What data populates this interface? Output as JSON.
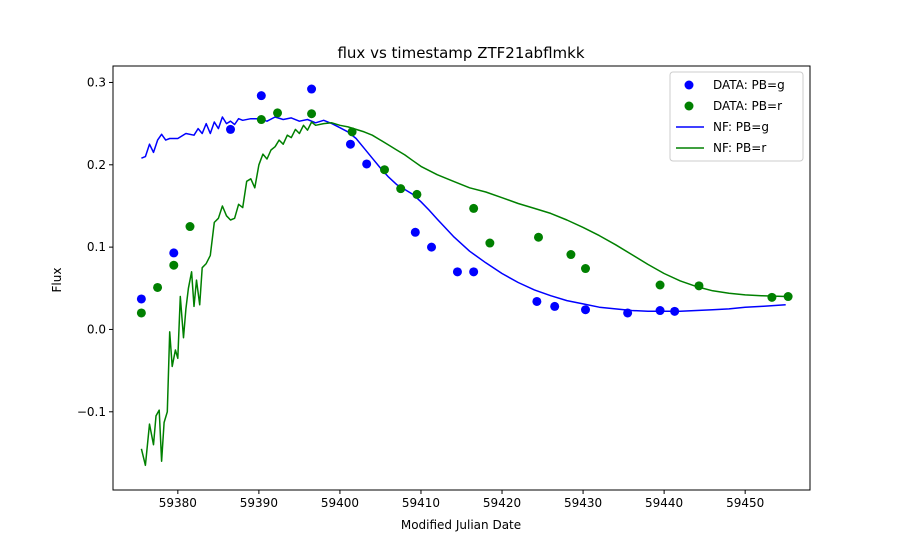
{
  "chart_data": {
    "type": "scatter",
    "title": "flux vs timestamp ZTF21abflmkk",
    "xlabel": "Modified Julian Date",
    "ylabel": "Flux",
    "xlim": [
      59372,
      59458
    ],
    "ylim": [
      -0.195,
      0.32
    ],
    "xticks": [
      59380,
      59390,
      59400,
      59410,
      59420,
      59430,
      59440,
      59450
    ],
    "yticks": [
      -0.1,
      0.0,
      0.1,
      0.2,
      0.3
    ],
    "ytick_labels": [
      "−0.1",
      "0.0",
      "0.1",
      "0.2",
      "0.3"
    ],
    "grid": false,
    "legend_position": "top-right",
    "scatter_series": [
      {
        "name": "DATA: PB=g",
        "color": "#0000ff",
        "points": [
          [
            59375.5,
            0.037
          ],
          [
            59379.5,
            0.093
          ],
          [
            59386.5,
            0.243
          ],
          [
            59390.3,
            0.284
          ],
          [
            59396.5,
            0.292
          ],
          [
            59401.3,
            0.225
          ],
          [
            59403.3,
            0.201
          ],
          [
            59409.3,
            0.118
          ],
          [
            59411.3,
            0.1
          ],
          [
            59414.5,
            0.07
          ],
          [
            59416.5,
            0.07
          ],
          [
            59424.3,
            0.034
          ],
          [
            59426.5,
            0.028
          ],
          [
            59430.3,
            0.024
          ],
          [
            59435.5,
            0.02
          ],
          [
            59439.5,
            0.023
          ],
          [
            59441.3,
            0.022
          ]
        ]
      },
      {
        "name": "DATA: PB=r",
        "color": "#008000",
        "points": [
          [
            59375.5,
            0.02
          ],
          [
            59377.5,
            0.051
          ],
          [
            59379.5,
            0.078
          ],
          [
            59381.5,
            0.125
          ],
          [
            59390.3,
            0.255
          ],
          [
            59392.3,
            0.263
          ],
          [
            59396.5,
            0.262
          ],
          [
            59401.5,
            0.24
          ],
          [
            59405.5,
            0.194
          ],
          [
            59407.5,
            0.171
          ],
          [
            59409.5,
            0.164
          ],
          [
            59416.5,
            0.147
          ],
          [
            59418.5,
            0.105
          ],
          [
            59424.5,
            0.112
          ],
          [
            59428.5,
            0.091
          ],
          [
            59430.3,
            0.074
          ],
          [
            59439.5,
            0.054
          ],
          [
            59444.3,
            0.053
          ],
          [
            59453.3,
            0.039
          ],
          [
            59455.3,
            0.04
          ]
        ]
      }
    ],
    "line_series": [
      {
        "name": "NF: PB=g",
        "color": "#0000ff",
        "points": [
          [
            59375.5,
            0.208
          ],
          [
            59376.0,
            0.21
          ],
          [
            59376.5,
            0.225
          ],
          [
            59377.0,
            0.215
          ],
          [
            59377.5,
            0.23
          ],
          [
            59378.0,
            0.237
          ],
          [
            59378.5,
            0.23
          ],
          [
            59379.0,
            0.232
          ],
          [
            59380.0,
            0.232
          ],
          [
            59381.0,
            0.238
          ],
          [
            59382.0,
            0.236
          ],
          [
            59382.5,
            0.244
          ],
          [
            59383.0,
            0.238
          ],
          [
            59383.5,
            0.25
          ],
          [
            59384.0,
            0.238
          ],
          [
            59384.5,
            0.252
          ],
          [
            59385.0,
            0.244
          ],
          [
            59385.5,
            0.258
          ],
          [
            59386.0,
            0.25
          ],
          [
            59386.5,
            0.253
          ],
          [
            59387.0,
            0.249
          ],
          [
            59387.5,
            0.256
          ],
          [
            59388.0,
            0.254
          ],
          [
            59389.0,
            0.256
          ],
          [
            59390.0,
            0.256
          ],
          [
            59391.0,
            0.253
          ],
          [
            59392.0,
            0.258
          ],
          [
            59393.0,
            0.255
          ],
          [
            59394.0,
            0.257
          ],
          [
            59395.0,
            0.253
          ],
          [
            59396.0,
            0.255
          ],
          [
            59397.0,
            0.251
          ],
          [
            59398.0,
            0.254
          ],
          [
            59399.0,
            0.25
          ],
          [
            59400.0,
            0.245
          ],
          [
            59401.0,
            0.24
          ],
          [
            59402.0,
            0.232
          ],
          [
            59403.0,
            0.22
          ],
          [
            59404.0,
            0.208
          ],
          [
            59405.0,
            0.196
          ],
          [
            59406.0,
            0.185
          ],
          [
            59407.0,
            0.176
          ],
          [
            59408.0,
            0.17
          ],
          [
            59409.0,
            0.164
          ],
          [
            59410.0,
            0.155
          ],
          [
            59411.0,
            0.145
          ],
          [
            59412.0,
            0.134
          ],
          [
            59414.0,
            0.113
          ],
          [
            59416.0,
            0.095
          ],
          [
            59418.0,
            0.081
          ],
          [
            59420.0,
            0.068
          ],
          [
            59422.0,
            0.057
          ],
          [
            59424.0,
            0.048
          ],
          [
            59426.0,
            0.041
          ],
          [
            59428.0,
            0.035
          ],
          [
            59430.0,
            0.031
          ],
          [
            59432.0,
            0.027
          ],
          [
            59434.0,
            0.025
          ],
          [
            59436.0,
            0.023
          ],
          [
            59438.0,
            0.022
          ],
          [
            59440.0,
            0.022
          ],
          [
            59442.0,
            0.022
          ],
          [
            59444.0,
            0.023
          ],
          [
            59446.0,
            0.024
          ],
          [
            59448.0,
            0.025
          ],
          [
            59450.0,
            0.027
          ],
          [
            59452.0,
            0.028
          ],
          [
            59455.0,
            0.03
          ]
        ]
      },
      {
        "name": "NF: PB=r",
        "color": "#008000",
        "points": [
          [
            59375.5,
            -0.145
          ],
          [
            59376.0,
            -0.165
          ],
          [
            59376.5,
            -0.115
          ],
          [
            59377.0,
            -0.14
          ],
          [
            59377.3,
            -0.105
          ],
          [
            59377.7,
            -0.098
          ],
          [
            59378.0,
            -0.16
          ],
          [
            59378.3,
            -0.113
          ],
          [
            59378.7,
            -0.1
          ],
          [
            59379.0,
            -0.003
          ],
          [
            59379.3,
            -0.045
          ],
          [
            59379.7,
            -0.025
          ],
          [
            59380.0,
            -0.035
          ],
          [
            59380.3,
            0.04
          ],
          [
            59380.7,
            -0.01
          ],
          [
            59381.0,
            0.025
          ],
          [
            59381.3,
            0.05
          ],
          [
            59381.7,
            0.07
          ],
          [
            59382.0,
            0.028
          ],
          [
            59382.3,
            0.06
          ],
          [
            59382.7,
            0.03
          ],
          [
            59383.0,
            0.075
          ],
          [
            59383.5,
            0.08
          ],
          [
            59384.0,
            0.09
          ],
          [
            59384.5,
            0.13
          ],
          [
            59385.0,
            0.135
          ],
          [
            59385.5,
            0.15
          ],
          [
            59386.0,
            0.138
          ],
          [
            59386.5,
            0.133
          ],
          [
            59387.0,
            0.135
          ],
          [
            59387.5,
            0.152
          ],
          [
            59388.0,
            0.148
          ],
          [
            59388.5,
            0.18
          ],
          [
            59389.0,
            0.183
          ],
          [
            59389.5,
            0.172
          ],
          [
            59390.0,
            0.2
          ],
          [
            59390.5,
            0.213
          ],
          [
            59391.0,
            0.207
          ],
          [
            59391.5,
            0.218
          ],
          [
            59392.0,
            0.222
          ],
          [
            59392.5,
            0.23
          ],
          [
            59393.0,
            0.225
          ],
          [
            59393.5,
            0.236
          ],
          [
            59394.0,
            0.233
          ],
          [
            59394.5,
            0.243
          ],
          [
            59395.0,
            0.238
          ],
          [
            59395.5,
            0.248
          ],
          [
            59396.0,
            0.242
          ],
          [
            59396.5,
            0.252
          ],
          [
            59397.0,
            0.248
          ],
          [
            59398.0,
            0.25
          ],
          [
            59399.0,
            0.251
          ],
          [
            59400.0,
            0.248
          ],
          [
            59401.0,
            0.246
          ],
          [
            59402.0,
            0.243
          ],
          [
            59403.0,
            0.24
          ],
          [
            59404.0,
            0.236
          ],
          [
            59405.0,
            0.23
          ],
          [
            59406.0,
            0.224
          ],
          [
            59407.0,
            0.218
          ],
          [
            59408.0,
            0.212
          ],
          [
            59409.0,
            0.205
          ],
          [
            59410.0,
            0.198
          ],
          [
            59412.0,
            0.188
          ],
          [
            59414.0,
            0.18
          ],
          [
            59416.0,
            0.172
          ],
          [
            59418.0,
            0.167
          ],
          [
            59420.0,
            0.16
          ],
          [
            59422.0,
            0.153
          ],
          [
            59424.0,
            0.147
          ],
          [
            59426.0,
            0.141
          ],
          [
            59428.0,
            0.133
          ],
          [
            59430.0,
            0.124
          ],
          [
            59432.0,
            0.114
          ],
          [
            59434.0,
            0.103
          ],
          [
            59436.0,
            0.091
          ],
          [
            59438.0,
            0.079
          ],
          [
            59440.0,
            0.068
          ],
          [
            59442.0,
            0.059
          ],
          [
            59444.0,
            0.052
          ],
          [
            59446.0,
            0.047
          ],
          [
            59448.0,
            0.044
          ],
          [
            59450.0,
            0.042
          ],
          [
            59452.0,
            0.041
          ],
          [
            59455.0,
            0.04
          ]
        ]
      }
    ]
  }
}
